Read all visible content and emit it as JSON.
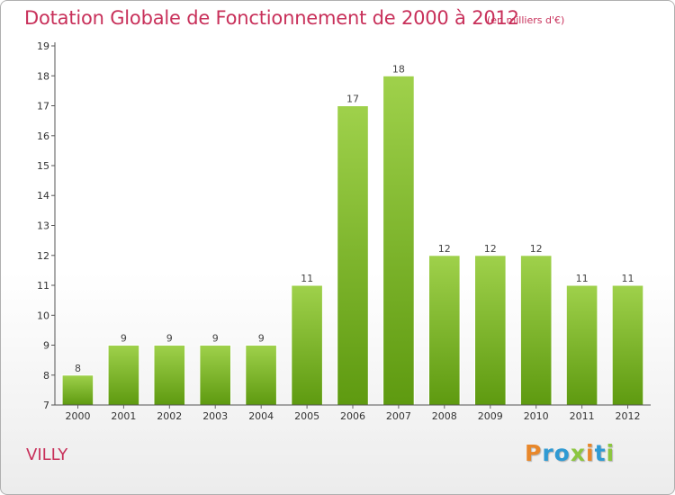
{
  "chart_data": {
    "type": "bar",
    "title": "Dotation Globale de Fonctionnement de 2000 à 2012",
    "subtitle": "(en milliers d'€)",
    "categories": [
      "2000",
      "2001",
      "2002",
      "2003",
      "2004",
      "2005",
      "2006",
      "2007",
      "2008",
      "2009",
      "2010",
      "2011",
      "2012"
    ],
    "values": [
      8,
      9,
      9,
      9,
      9,
      11,
      17,
      18,
      12,
      12,
      12,
      11,
      11
    ],
    "ylim": [
      7,
      19
    ],
    "yticks": [
      7,
      8,
      9,
      10,
      11,
      12,
      13,
      14,
      15,
      16,
      17,
      18,
      19
    ],
    "grid": false,
    "bar_color_top": "#9fd14b",
    "bar_color_bottom": "#5e9a10"
  },
  "commune": "VILLY",
  "logo": {
    "p": "P",
    "r": "r",
    "o": "o",
    "x": "x",
    "i": "i",
    "t": "t",
    "i2": "i"
  },
  "colors": {
    "title": "#c8305a",
    "axis": "#555555"
  }
}
